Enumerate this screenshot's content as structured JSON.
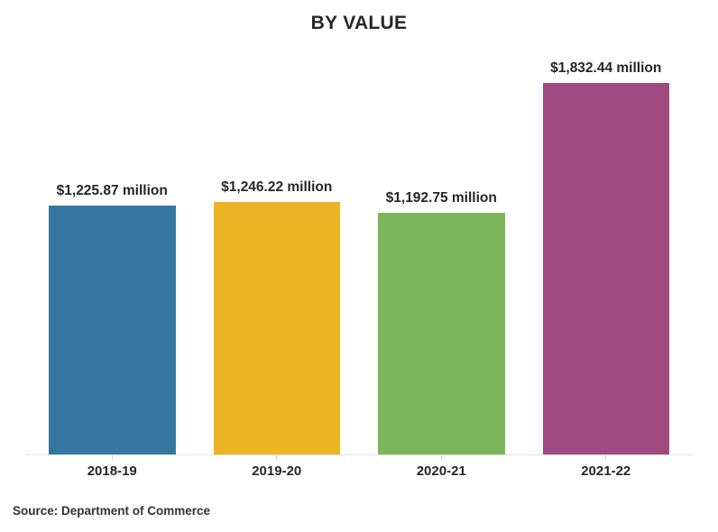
{
  "chart_data": {
    "type": "bar",
    "title": "BY VALUE",
    "categories": [
      "2018-19",
      "2019-20",
      "2020-21",
      "2021-22"
    ],
    "values": [
      1225.87,
      1246.22,
      1192.75,
      1832.44
    ],
    "value_labels": [
      "$1,225.87 million",
      "$1,246.22 million",
      "$1,192.75 million",
      "$1,832.44 million"
    ],
    "unit": "million USD",
    "bar_colors": [
      "#37779F",
      "#ECB424",
      "#7CB55A",
      "#9E4A7F"
    ],
    "ylim": [
      0,
      1832.44
    ],
    "grid": false,
    "legend": "none",
    "axis_line_color": "#e3e3e3",
    "text_color": "#262626"
  },
  "source": {
    "text": "Source: Department of Commerce"
  }
}
